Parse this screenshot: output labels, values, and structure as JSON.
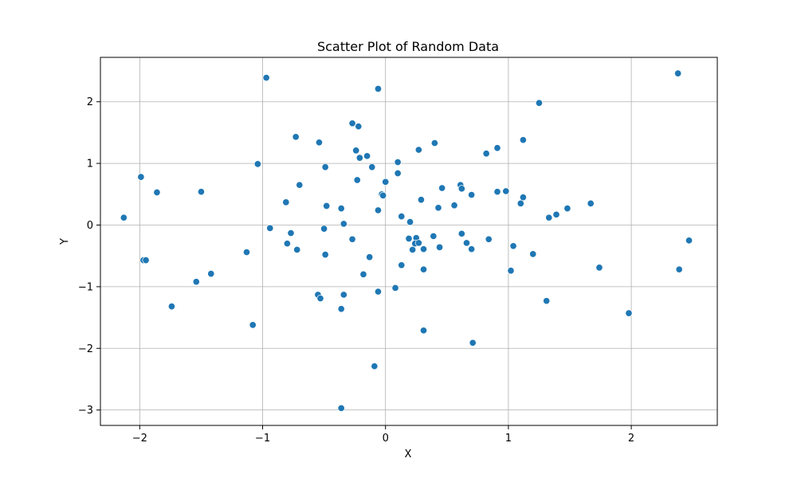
{
  "chart_data": {
    "type": "scatter",
    "title": "Scatter Plot of Random Data",
    "xlabel": "X",
    "ylabel": "Y",
    "xlim": [
      -2.32,
      2.7
    ],
    "ylim": [
      -3.25,
      2.72
    ],
    "x_ticks": [
      -2,
      -1,
      0,
      1,
      2
    ],
    "x_tick_labels": [
      "−2",
      "−1",
      "0",
      "1",
      "2"
    ],
    "y_ticks": [
      -3,
      -2,
      -1,
      0,
      1,
      2
    ],
    "y_tick_labels": [
      "−3",
      "−2",
      "−1",
      "0",
      "1",
      "2"
    ],
    "grid": true,
    "marker_color": "#1f77b4",
    "points": [
      [
        2.38,
        2.46
      ],
      [
        -0.97,
        2.39
      ],
      [
        -0.06,
        2.21
      ],
      [
        1.25,
        1.98
      ],
      [
        -0.27,
        1.65
      ],
      [
        -0.22,
        1.6
      ],
      [
        -0.73,
        1.43
      ],
      [
        1.12,
        1.38
      ],
      [
        -0.54,
        1.34
      ],
      [
        0.4,
        1.33
      ],
      [
        0.91,
        1.25
      ],
      [
        0.27,
        1.22
      ],
      [
        -0.24,
        1.21
      ],
      [
        0.82,
        1.16
      ],
      [
        -0.15,
        1.12
      ],
      [
        -0.21,
        1.09
      ],
      [
        0.1,
        1.02
      ],
      [
        -1.04,
        0.99
      ],
      [
        -0.49,
        0.94
      ],
      [
        -0.11,
        0.94
      ],
      [
        0.1,
        0.84
      ],
      [
        -0.23,
        0.73
      ],
      [
        0.0,
        0.7
      ],
      [
        -0.7,
        0.65
      ],
      [
        0.61,
        0.65
      ],
      [
        0.46,
        0.6
      ],
      [
        0.62,
        0.59
      ],
      [
        0.98,
        0.55
      ],
      [
        0.91,
        0.54
      ],
      [
        -1.5,
        0.54
      ],
      [
        -1.86,
        0.53
      ],
      [
        -0.03,
        0.5
      ],
      [
        0.7,
        0.49
      ],
      [
        -0.02,
        0.48
      ],
      [
        1.12,
        0.45
      ],
      [
        0.29,
        0.41
      ],
      [
        -0.81,
        0.37
      ],
      [
        1.67,
        0.35
      ],
      [
        1.1,
        0.35
      ],
      [
        0.56,
        0.32
      ],
      [
        -0.48,
        0.31
      ],
      [
        0.43,
        0.28
      ],
      [
        -0.36,
        0.27
      ],
      [
        1.48,
        0.27
      ],
      [
        -0.06,
        0.24
      ],
      [
        1.39,
        0.17
      ],
      [
        0.13,
        0.14
      ],
      [
        1.33,
        0.12
      ],
      [
        -2.13,
        0.12
      ],
      [
        -1.99,
        0.78
      ],
      [
        0.2,
        0.05
      ],
      [
        -0.34,
        0.02
      ],
      [
        -0.94,
        -0.05
      ],
      [
        -0.5,
        -0.06
      ],
      [
        -0.77,
        -0.13
      ],
      [
        0.62,
        -0.14
      ],
      [
        0.39,
        -0.18
      ],
      [
        0.19,
        -0.22
      ],
      [
        -0.27,
        -0.23
      ],
      [
        0.84,
        -0.23
      ],
      [
        0.25,
        -0.21
      ],
      [
        2.47,
        -0.25
      ],
      [
        0.66,
        -0.29
      ],
      [
        -0.8,
        -0.3
      ],
      [
        0.24,
        -0.3
      ],
      [
        0.27,
        -0.29
      ],
      [
        1.04,
        -0.34
      ],
      [
        0.44,
        -0.36
      ],
      [
        0.7,
        -0.39
      ],
      [
        -0.72,
        -0.4
      ],
      [
        0.22,
        -0.4
      ],
      [
        0.31,
        -0.39
      ],
      [
        -1.13,
        -0.44
      ],
      [
        1.2,
        -0.47
      ],
      [
        -0.49,
        -0.48
      ],
      [
        -0.13,
        -0.52
      ],
      [
        -1.97,
        -0.57
      ],
      [
        -1.95,
        -0.57
      ],
      [
        0.13,
        -0.65
      ],
      [
        1.74,
        -0.69
      ],
      [
        0.31,
        -0.72
      ],
      [
        2.39,
        -0.72
      ],
      [
        1.02,
        -0.74
      ],
      [
        -1.42,
        -0.79
      ],
      [
        -0.18,
        -0.8
      ],
      [
        -1.54,
        -0.92
      ],
      [
        0.08,
        -1.02
      ],
      [
        -0.06,
        -1.08
      ],
      [
        -0.55,
        -1.13
      ],
      [
        -0.34,
        -1.13
      ],
      [
        -0.53,
        -1.19
      ],
      [
        1.31,
        -1.23
      ],
      [
        -1.74,
        -1.32
      ],
      [
        -0.36,
        -1.36
      ],
      [
        1.98,
        -1.43
      ],
      [
        -1.08,
        -1.62
      ],
      [
        0.31,
        -1.71
      ],
      [
        0.71,
        -1.91
      ],
      [
        -0.09,
        -2.29
      ],
      [
        -0.36,
        -2.97
      ]
    ]
  }
}
